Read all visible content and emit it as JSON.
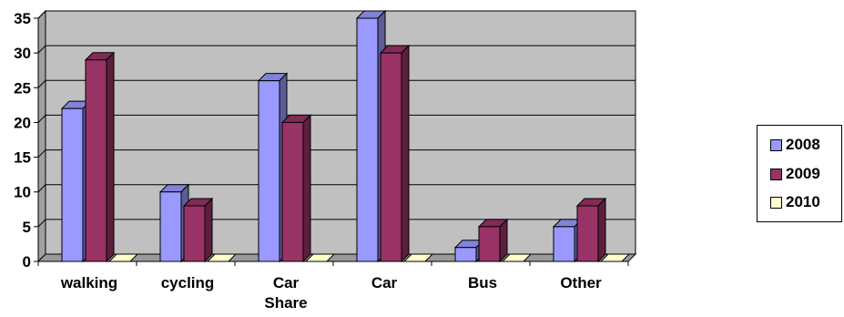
{
  "chart_data": {
    "type": "bar",
    "categories": [
      "walking",
      "cycling",
      "Car Share",
      "Car",
      "Bus",
      "Other"
    ],
    "series": [
      {
        "name": "2008",
        "values": [
          22,
          10,
          26,
          35,
          2,
          5
        ],
        "color": "#9999ff"
      },
      {
        "name": "2009",
        "values": [
          29,
          8,
          20,
          30,
          5,
          8
        ],
        "color": "#993366"
      },
      {
        "name": "2010",
        "values": [
          0,
          0,
          0,
          0,
          0,
          0
        ],
        "color": "#ffffcc"
      }
    ],
    "title": "",
    "xlabel": "",
    "ylabel": "",
    "ylim": [
      0,
      35
    ],
    "yticks": [
      "0",
      "5",
      "10",
      "15",
      "20",
      "25",
      "30",
      "35"
    ],
    "grid": true,
    "legend": "right",
    "wall_color": "#c0c0c0"
  }
}
